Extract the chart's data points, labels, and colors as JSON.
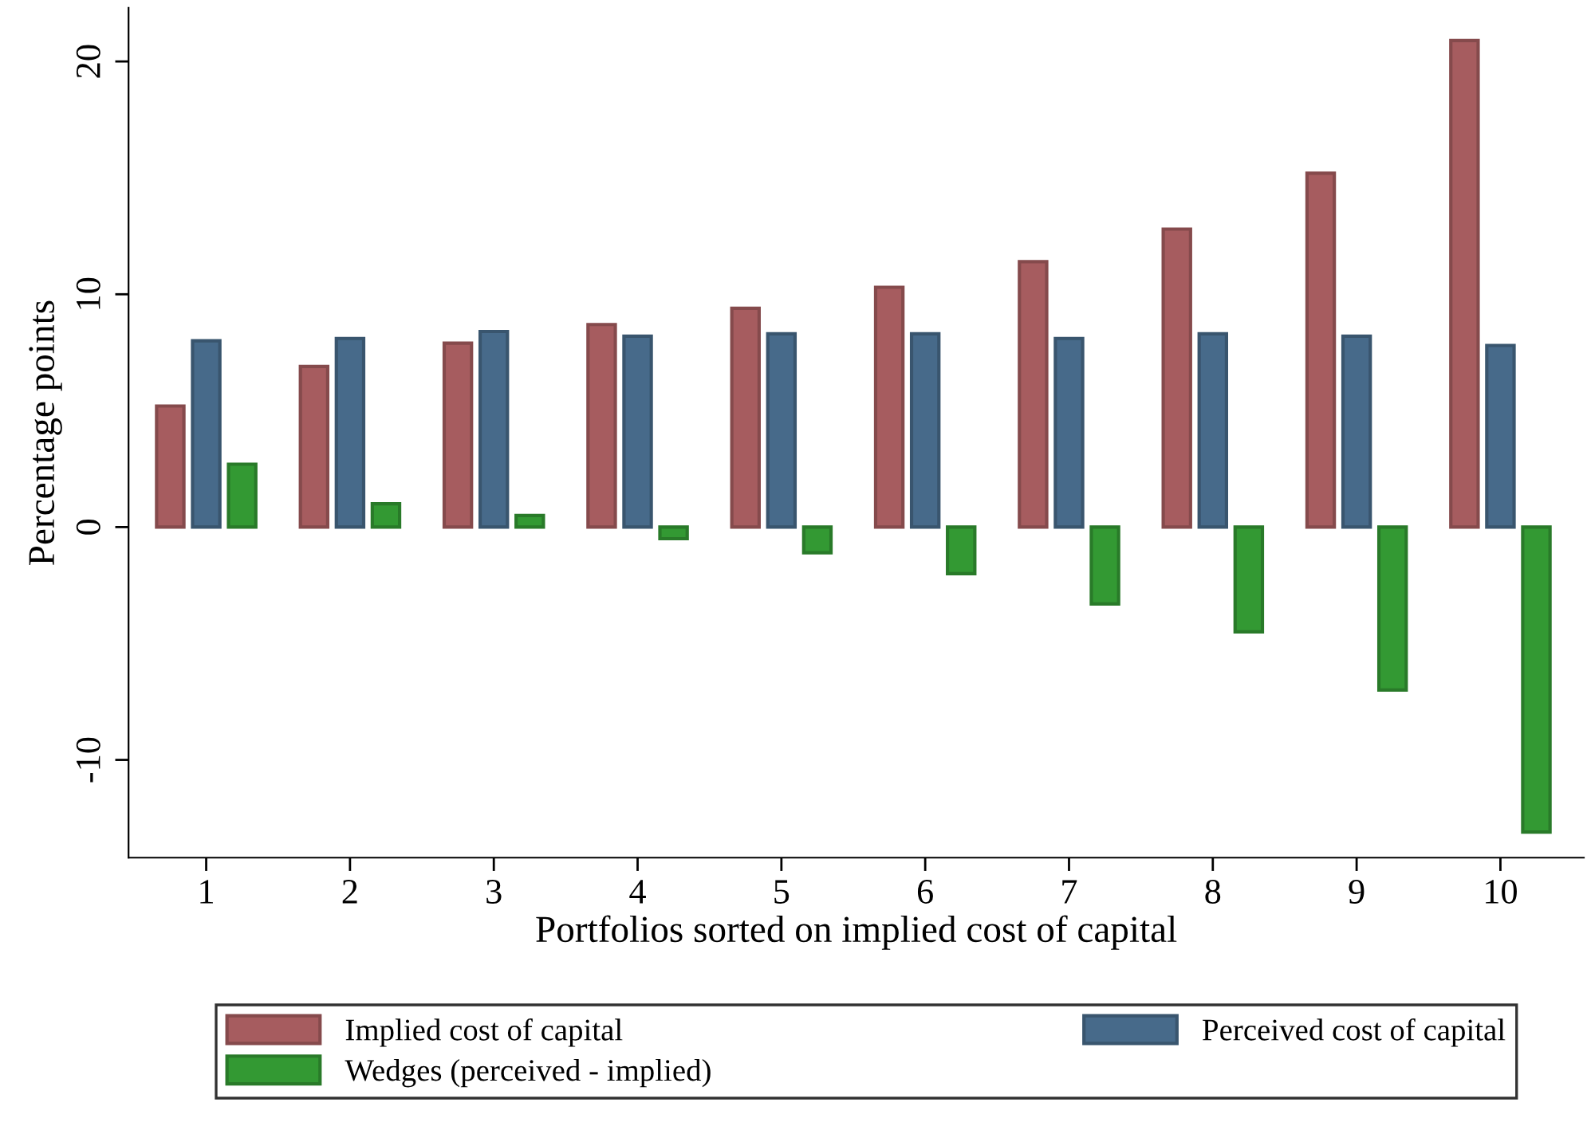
{
  "chart_data": {
    "type": "bar",
    "xlabel": "Portfolios sorted on implied cost of capital",
    "ylabel": "Percentage points",
    "categories": [
      "1",
      "2",
      "3",
      "4",
      "5",
      "6",
      "7",
      "8",
      "9",
      "10"
    ],
    "series": [
      {
        "name": "Implied cost of capital",
        "color": "#a65c5f",
        "values": [
          5.2,
          6.9,
          7.9,
          8.7,
          9.4,
          10.3,
          11.4,
          12.8,
          15.2,
          20.9
        ]
      },
      {
        "name": "Perceived cost of capital",
        "color": "#476a8a",
        "values": [
          8.0,
          8.1,
          8.4,
          8.2,
          8.3,
          8.3,
          8.1,
          8.3,
          8.2,
          7.8
        ]
      },
      {
        "name": "Wedges (perceived - implied)",
        "color": "#339933",
        "values": [
          2.7,
          1.0,
          0.5,
          -0.5,
          -1.1,
          -2.0,
          -3.3,
          -4.5,
          -7.0,
          -13.1
        ]
      }
    ],
    "ylim": [
      -14.2,
      22.3
    ],
    "yticks": [
      {
        "value": -10,
        "label": "-10"
      },
      0,
      10,
      20
    ],
    "legend": "bottom",
    "grid": false
  }
}
